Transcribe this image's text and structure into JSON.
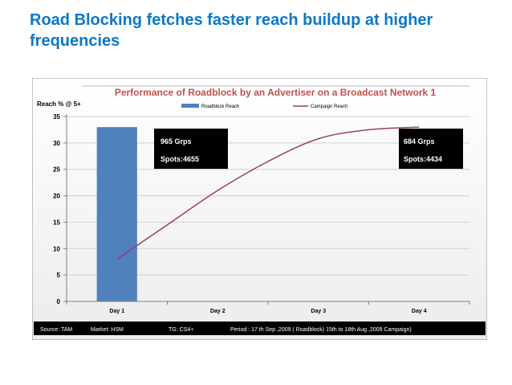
{
  "slide": {
    "title": "Road Blocking fetches faster reach buildup at higher frequencies"
  },
  "chart_data": {
    "type": "bar",
    "title": "Performance of Roadblock by an Advertiser on a Broadcast Network 1",
    "ylabel": "Reach % @ 5+",
    "xlabel": "",
    "categories": [
      "Day 1",
      "Day 2",
      "Day 3",
      "Day 4"
    ],
    "ylim": [
      0,
      35
    ],
    "yticks": [
      0,
      5,
      10,
      15,
      20,
      25,
      30,
      35
    ],
    "grid": true,
    "legend_placement": "top",
    "series": [
      {
        "name": "Roadblock Reach",
        "type": "bar",
        "color": "#4f81bd",
        "values": [
          33,
          null,
          null,
          null
        ]
      },
      {
        "name": "Campaign Reach",
        "type": "line",
        "color": "#9b3b6e",
        "points": [
          [
            1.0,
            8
          ],
          [
            1.5,
            14.5
          ],
          [
            2.0,
            21
          ],
          [
            2.5,
            26.5
          ],
          [
            3.0,
            30.8
          ],
          [
            3.5,
            32.5
          ],
          [
            4.0,
            33
          ]
        ]
      }
    ],
    "annotations": [
      {
        "lines": [
          "965 Grps",
          "Spots:4655"
        ],
        "anchor": "Day 1"
      },
      {
        "lines": [
          "684 Grps",
          "Spots:4434"
        ],
        "anchor": "Day 4"
      }
    ],
    "source_bar": {
      "source": "Source: TAM",
      "market": "Market: HSM",
      "tg": "TG:  CS4+",
      "period": "Period : 17 th Sep ,2009 ( Roadblock)  15th to 18th Aug ,2009  Campaign)"
    },
    "colors": {
      "title": "#c0504d",
      "accent": "#0b78c8"
    }
  }
}
